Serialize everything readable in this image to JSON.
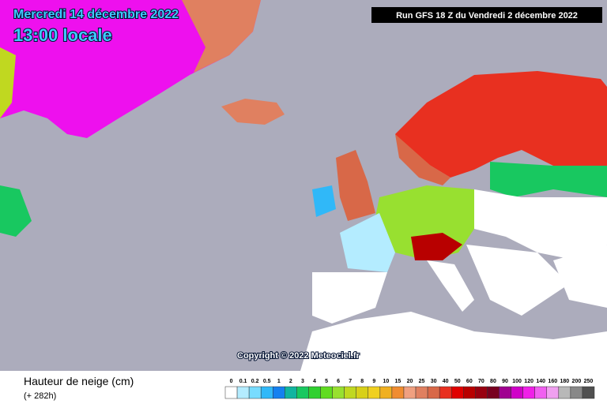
{
  "header": {
    "date": "Mercredi 14 décembre 2022",
    "time": "13:00 locale",
    "run": "Run GFS 18 Z du Vendredi 2 décembre 2022"
  },
  "copyright": "Copyright © 2022 Meteociel.fr",
  "legend": {
    "title": "Hauteur de neige (cm)",
    "subtitle": "(+ 282h)",
    "labels": [
      "0",
      "0.1",
      "0.2",
      "0.5",
      "1",
      "2",
      "3",
      "4",
      "5",
      "6",
      "7",
      "8",
      "9",
      "10",
      "15",
      "20",
      "25",
      "30",
      "40",
      "50",
      "60",
      "70",
      "80",
      "90",
      "100",
      "120",
      "140",
      "160",
      "180",
      "200",
      "250"
    ],
    "colors": [
      "#ffffff",
      "#b4ecff",
      "#78dcff",
      "#30b8f8",
      "#1480f0",
      "#10b4a0",
      "#18c860",
      "#30d030",
      "#60dc20",
      "#98e030",
      "#c0d820",
      "#d8d018",
      "#f0d020",
      "#f0b020",
      "#f08c30",
      "#f0a080",
      "#e08060",
      "#d86848",
      "#e83020",
      "#e00000",
      "#b80000",
      "#980010",
      "#780020",
      "#a00090",
      "#d000c8",
      "#f020e8",
      "#f060f0",
      "#f0a0f0",
      "#b8b8b8",
      "#888888",
      "#505050"
    ]
  }
}
